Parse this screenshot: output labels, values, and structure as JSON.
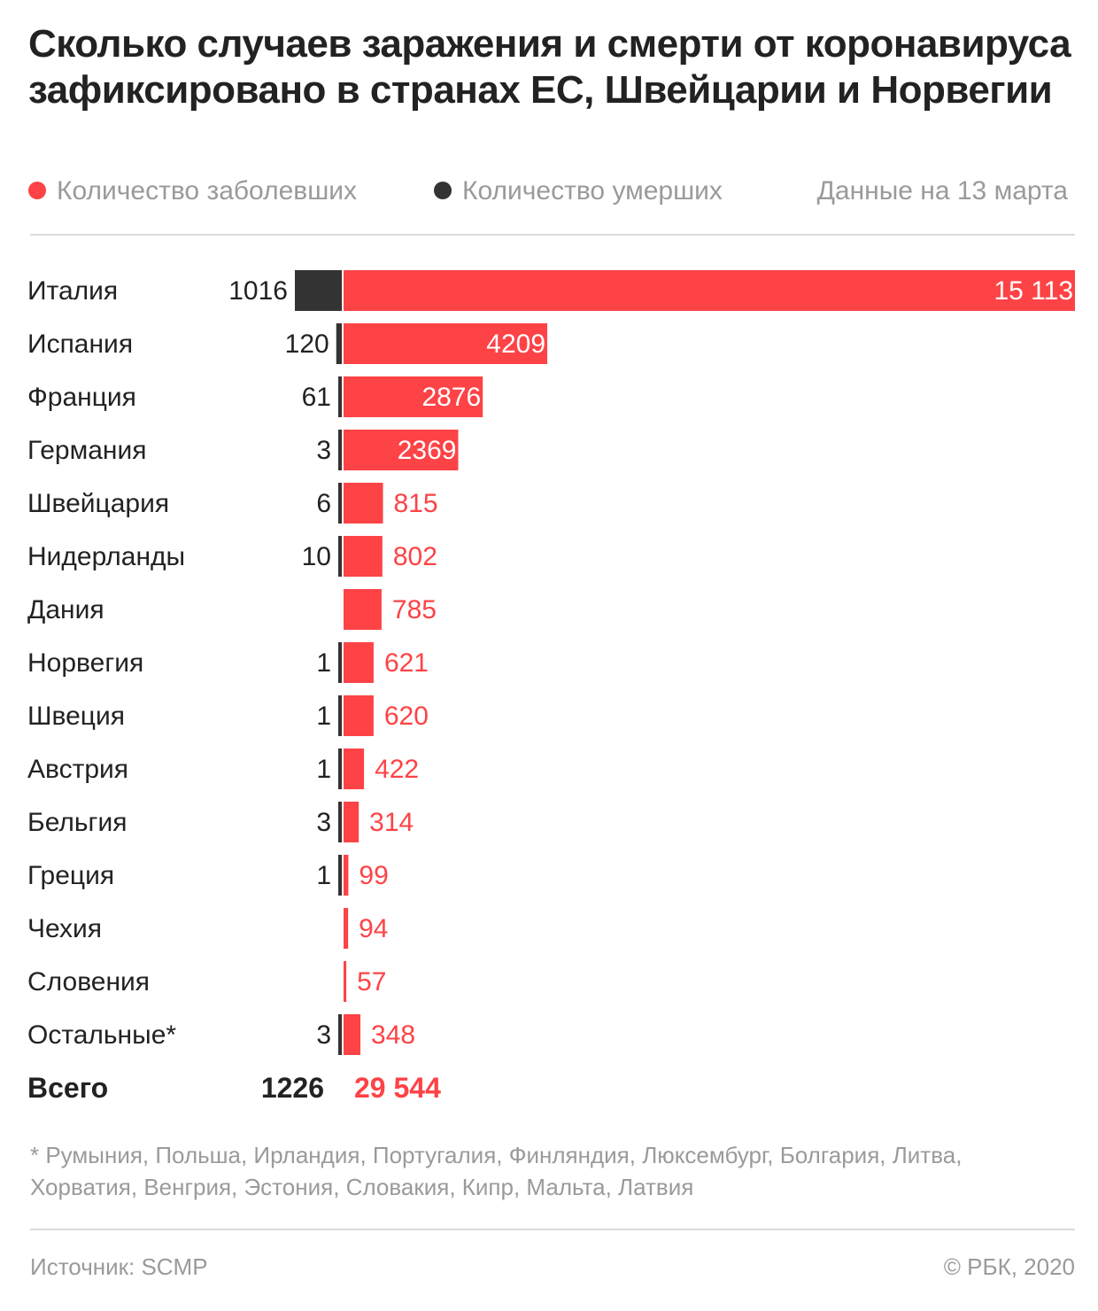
{
  "title": "Сколько случаев заражения и смерти от коронавируса зафиксировано в странах ЕС, Швейцарии и Норвегии",
  "legend": {
    "cases": "Количество заболевших",
    "deaths": "Количество умерших",
    "date": "Данные на 13 марта"
  },
  "colors": {
    "cases": "#fd4346",
    "deaths": "#333333",
    "text": "#222222",
    "muted": "#9a9a9a"
  },
  "chart_data": {
    "type": "bar",
    "orientation": "horizontal",
    "categories": [
      "Италия",
      "Испания",
      "Франция",
      "Германия",
      "Швейцария",
      "Нидерланды",
      "Дания",
      "Норвегия",
      "Швеция",
      "Австрия",
      "Бельгия",
      "Греция",
      "Чехия",
      "Словения",
      "Остальные*"
    ],
    "series": [
      {
        "name": "Количество умерших",
        "values": [
          1016,
          120,
          61,
          3,
          6,
          10,
          null,
          1,
          1,
          1,
          3,
          1,
          null,
          null,
          3
        ]
      },
      {
        "name": "Количество заболевших",
        "values": [
          15113,
          4209,
          2876,
          2369,
          815,
          802,
          785,
          621,
          620,
          422,
          314,
          99,
          94,
          57,
          348
        ]
      }
    ],
    "value_labels": {
      "deaths": [
        "1016",
        "120",
        "61",
        "3",
        "6",
        "10",
        "",
        "1",
        "1",
        "1",
        "3",
        "1",
        "",
        "",
        "3"
      ],
      "cases": [
        "15 113",
        "4209",
        "2876",
        "2369",
        "815",
        "802",
        "785",
        "621",
        "620",
        "422",
        "314",
        "99",
        "94",
        "57",
        "348"
      ]
    },
    "total": {
      "label": "Всего",
      "deaths": "1226",
      "cases": "29 544"
    }
  },
  "footnote": "* Румыния, Польша, Ирландия, Португалия, Финляндия, Люксембург, Болгария, Литва, Хорватия, Венгрия, Эстония, Словакия, Кипр, Мальта, Латвия",
  "source": "Источник: SCMP",
  "copyright": "© РБК, 2020"
}
